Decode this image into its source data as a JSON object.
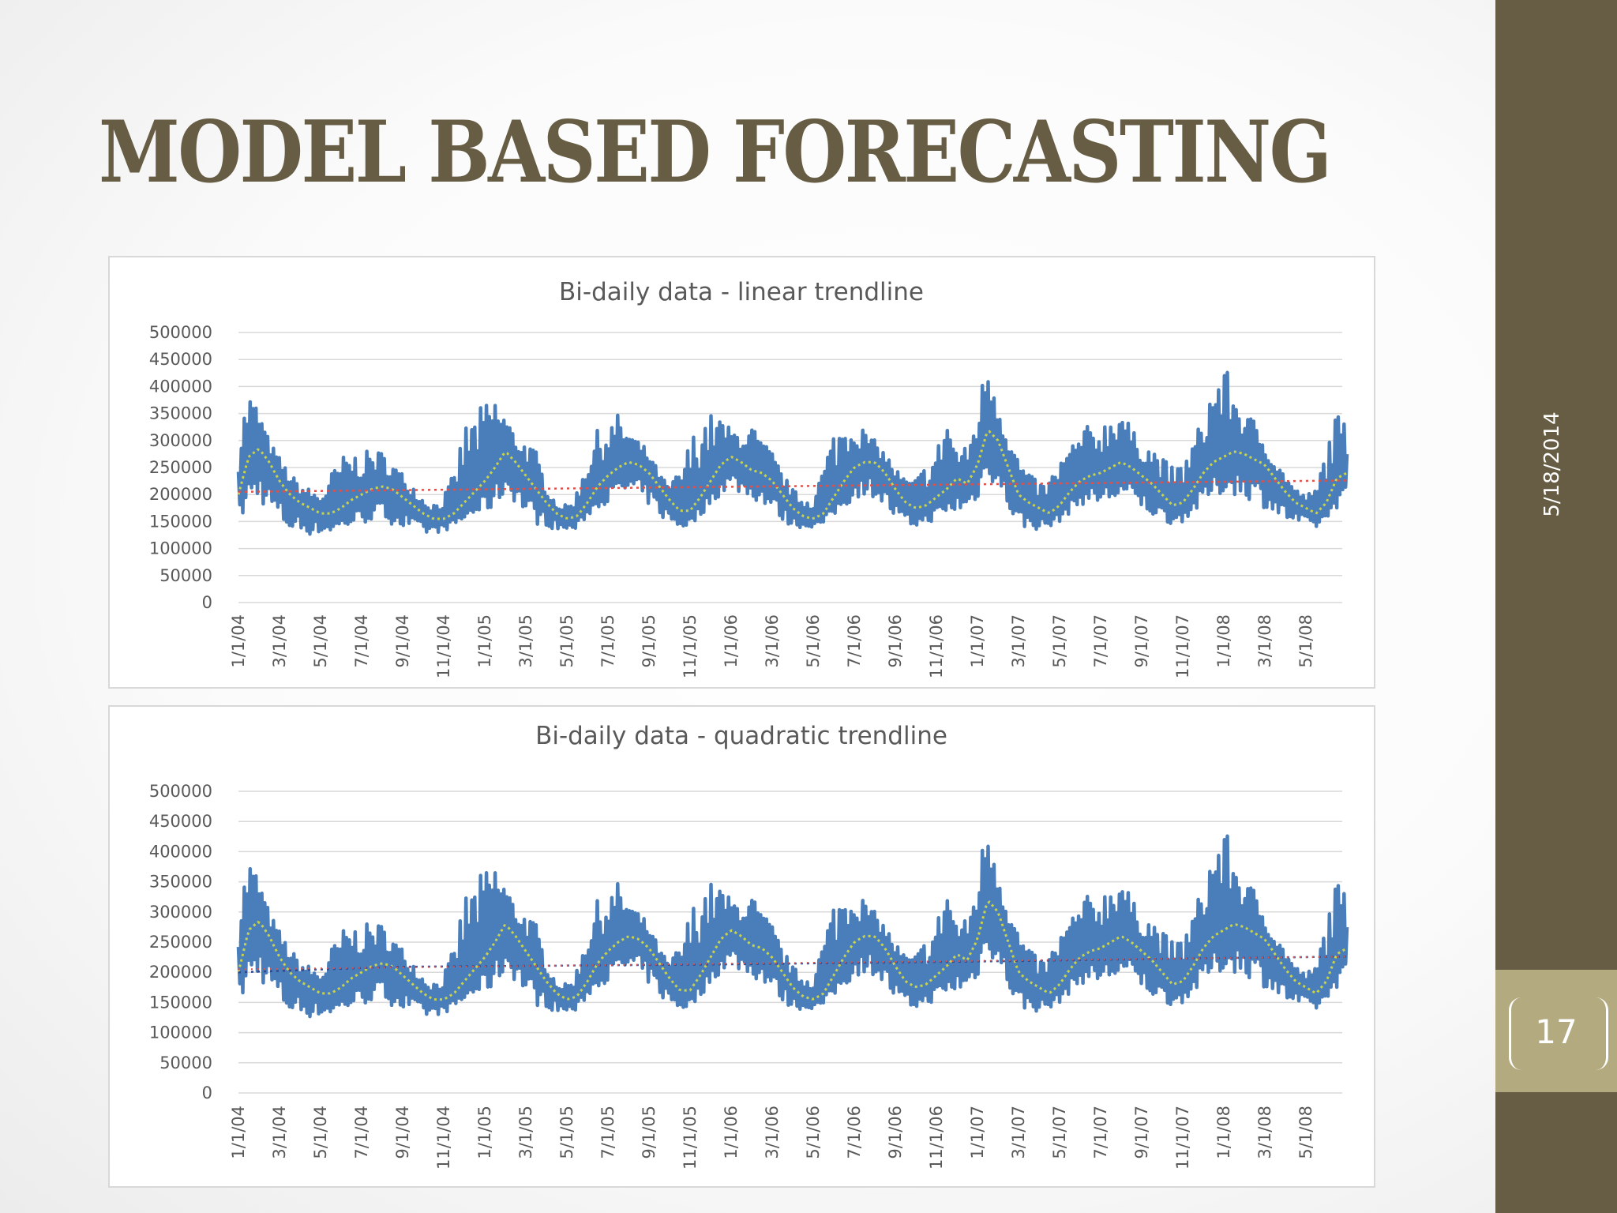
{
  "slide": {
    "title": "MODEL BASED FORECASTING",
    "date": "5/18/2014",
    "page_number": "17"
  },
  "chart_data": [
    {
      "type": "line",
      "title": "Bi-daily data - linear trendline",
      "ylim": [
        0,
        500000
      ],
      "y_ticks": [
        "500000",
        "450000",
        "400000",
        "350000",
        "300000",
        "250000",
        "200000",
        "150000",
        "100000",
        "50000",
        "0"
      ],
      "x_ticks": [
        "1/1/04",
        "3/1/04",
        "5/1/04",
        "7/1/04",
        "9/1/04",
        "11/1/04",
        "1/1/05",
        "3/1/05",
        "5/1/05",
        "7/1/05",
        "9/1/05",
        "11/1/05",
        "1/1/06",
        "3/1/06",
        "5/1/06",
        "7/1/06",
        "9/1/06",
        "11/1/06",
        "1/1/07",
        "3/1/07",
        "5/1/07",
        "7/1/07",
        "9/1/07",
        "11/1/07",
        "1/1/08",
        "3/1/08",
        "5/1/08"
      ],
      "grid": true,
      "trendline": "linear",
      "series_colors": {
        "data": "#4a7ebb",
        "moving_average": "#c9d34a",
        "trend": "#d9534f"
      }
    },
    {
      "type": "line",
      "title": "Bi-daily data - quadratic trendline",
      "ylim": [
        0,
        500000
      ],
      "y_ticks": [
        "500000",
        "450000",
        "400000",
        "350000",
        "300000",
        "250000",
        "200000",
        "150000",
        "100000",
        "50000",
        "0"
      ],
      "x_ticks": [
        "1/1/04",
        "3/1/04",
        "5/1/04",
        "7/1/04",
        "9/1/04",
        "11/1/04",
        "1/1/05",
        "3/1/05",
        "5/1/05",
        "7/1/05",
        "9/1/05",
        "11/1/05",
        "1/1/06",
        "3/1/06",
        "5/1/06",
        "7/1/06",
        "9/1/06",
        "11/1/06",
        "1/1/07",
        "3/1/07",
        "5/1/07",
        "7/1/07",
        "9/1/07",
        "11/1/07",
        "1/1/08",
        "3/1/08",
        "5/1/08"
      ],
      "grid": true,
      "trendline": "quadratic",
      "series_colors": {
        "data": "#4a7ebb",
        "moving_average": "#c9d34a",
        "trend": "#d9534f",
        "trend2": "#2e4a8c"
      }
    }
  ],
  "series_shape": {
    "x_months": [
      0,
      0.5,
      1,
      1.5,
      2,
      2.5,
      3,
      3.5,
      4,
      4.5,
      5,
      5.5,
      6,
      6.5,
      7,
      7.5,
      8,
      8.5,
      9,
      9.5,
      10,
      10.5,
      11,
      11.5,
      12,
      12.5,
      13,
      13.5,
      14,
      14.5,
      15,
      15.5,
      16,
      16.5,
      17,
      17.5,
      18,
      18.5,
      19,
      19.5,
      20,
      20.5,
      21,
      21.5,
      22,
      22.5,
      23,
      23.5,
      24,
      24.5,
      25,
      25.5,
      26,
      26.5,
      27,
      27.5,
      28,
      28.5,
      29,
      29.5,
      30,
      30.5,
      31,
      31.5,
      32,
      32.5,
      33,
      33.5,
      34,
      34.5,
      35,
      35.5,
      36,
      36.5,
      37,
      37.5,
      38,
      38.5,
      39,
      39.5,
      40,
      40.5,
      41,
      41.5,
      42,
      42.5,
      43,
      43.5,
      44,
      44.5,
      45,
      45.5,
      46,
      46.5,
      47,
      47.5,
      48,
      48.5,
      49,
      49.5,
      50,
      50.5,
      51,
      51.5,
      52,
      52.5,
      53,
      53.5,
      54
    ],
    "moving_average": [
      200000,
      270000,
      285000,
      260000,
      225000,
      200000,
      185000,
      175000,
      165000,
      165000,
      175000,
      190000,
      200000,
      210000,
      215000,
      210000,
      195000,
      180000,
      165000,
      155000,
      155000,
      165000,
      185000,
      205000,
      225000,
      250000,
      280000,
      260000,
      235000,
      210000,
      185000,
      165000,
      155000,
      160000,
      185000,
      215000,
      235000,
      250000,
      260000,
      255000,
      240000,
      215000,
      190000,
      170000,
      170000,
      195000,
      225000,
      255000,
      270000,
      260000,
      245000,
      240000,
      225000,
      200000,
      175000,
      160000,
      155000,
      165000,
      195000,
      225000,
      250000,
      260000,
      260000,
      240000,
      210000,
      185000,
      175000,
      180000,
      195000,
      210000,
      230000,
      220000,
      255000,
      320000,
      300000,
      250000,
      200000,
      185000,
      175000,
      165000,
      180000,
      205000,
      225000,
      235000,
      240000,
      250000,
      260000,
      250000,
      235000,
      220000,
      200000,
      180000,
      185000,
      210000,
      240000,
      260000,
      270000,
      280000,
      275000,
      265000,
      255000,
      230000,
      205000,
      185000,
      175000,
      165000,
      185000,
      230000,
      240000
    ],
    "envelope_high": [
      320000,
      395000,
      360000,
      300000,
      270000,
      240000,
      220000,
      210000,
      200000,
      240000,
      270000,
      280000,
      275000,
      285000,
      280000,
      260000,
      240000,
      220000,
      195000,
      185000,
      200000,
      240000,
      330000,
      350000,
      370000,
      385000,
      350000,
      310000,
      300000,
      280000,
      220000,
      185000,
      180000,
      210000,
      290000,
      320000,
      330000,
      350000,
      320000,
      300000,
      280000,
      240000,
      215000,
      250000,
      300000,
      350000,
      350000,
      345000,
      320000,
      320000,
      330000,
      300000,
      280000,
      240000,
      210000,
      195000,
      200000,
      260000,
      320000,
      340000,
      345000,
      320000,
      300000,
      280000,
      250000,
      230000,
      230000,
      260000,
      280000,
      370000,
      280000,
      290000,
      360000,
      470000,
      380000,
      320000,
      270000,
      240000,
      220000,
      230000,
      270000,
      290000,
      320000,
      330000,
      330000,
      350000,
      375000,
      320000,
      300000,
      290000,
      270000,
      250000,
      260000,
      300000,
      350000,
      420000,
      440000,
      400000,
      350000,
      340000,
      300000,
      260000,
      240000,
      210000,
      200000,
      210000,
      300000,
      350000,
      330000
    ],
    "envelope_low": [
      140000,
      180000,
      190000,
      165000,
      145000,
      130000,
      130000,
      125000,
      128000,
      130000,
      135000,
      140000,
      145000,
      150000,
      150000,
      145000,
      135000,
      128000,
      125000,
      128000,
      132000,
      140000,
      150000,
      160000,
      165000,
      175000,
      200000,
      185000,
      160000,
      145000,
      140000,
      135000,
      132000,
      135000,
      160000,
      175000,
      185000,
      195000,
      200000,
      195000,
      180000,
      160000,
      145000,
      138000,
      140000,
      160000,
      180000,
      200000,
      210000,
      200000,
      190000,
      185000,
      170000,
      150000,
      140000,
      138000,
      140000,
      145000,
      160000,
      175000,
      190000,
      200000,
      195000,
      175000,
      150000,
      138000,
      140000,
      145000,
      155000,
      160000,
      165000,
      170000,
      190000,
      240000,
      200000,
      170000,
      140000,
      135000,
      135000,
      138000,
      150000,
      165000,
      180000,
      185000,
      180000,
      185000,
      190000,
      180000,
      170000,
      160000,
      150000,
      145000,
      150000,
      165000,
      180000,
      195000,
      200000,
      200000,
      195000,
      185000,
      175000,
      160000,
      150000,
      145000,
      140000,
      138000,
      150000,
      175000,
      185000
    ],
    "linear_trend": [
      205000,
      226000
    ],
    "quadratic_trend": [
      200000,
      209000,
      211000,
      213000,
      216000,
      219000,
      223000,
      226000
    ]
  }
}
